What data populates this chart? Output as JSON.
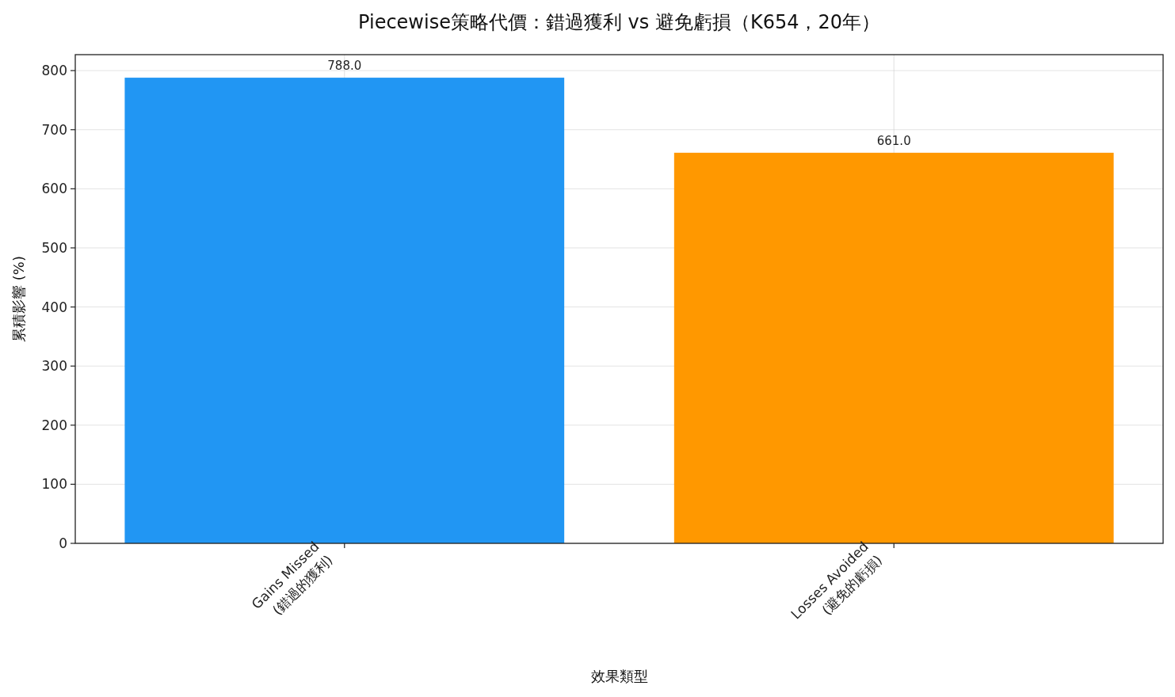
{
  "chart_data": {
    "type": "bar",
    "title": "Piecewise策略代價：錯過獲利 vs 避免虧損（K654，20年）",
    "xlabel": "效果類型",
    "ylabel": "累積影響 (%)",
    "categories": [
      "Gains Missed\n(錯過的獲利)",
      "Losses Avoided\n(避免的虧損)"
    ],
    "values": [
      788,
      661
    ],
    "colors": [
      "#2196f3",
      "#ff9800"
    ],
    "value_labels": [
      "788.0",
      "661.0"
    ],
    "ylim": [
      0,
      827
    ],
    "yticks": [
      0,
      100,
      200,
      300,
      400,
      500,
      600,
      700,
      800
    ],
    "grid": true
  }
}
